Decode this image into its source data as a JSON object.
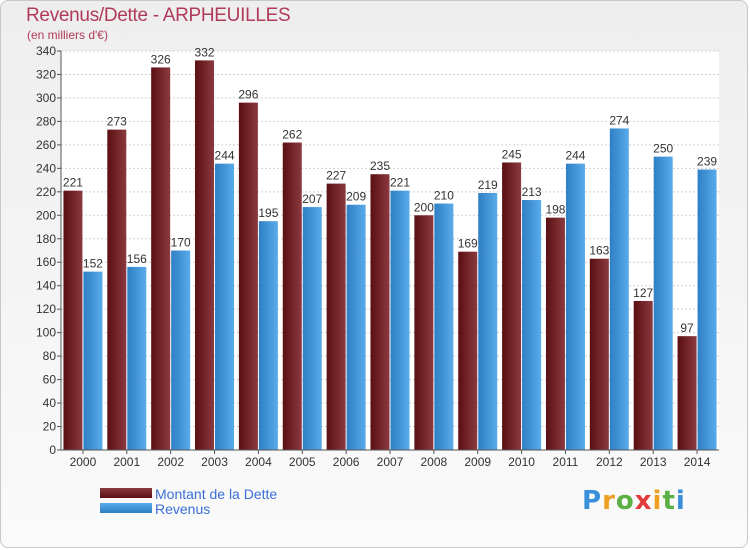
{
  "page": {
    "title": "Revenus/Dette - ARPHEUILLES",
    "subtitle": "(en milliers d'€)"
  },
  "legend": {
    "debt_label": "Montant de la Dette",
    "revenue_label": "Revenus"
  },
  "logo": {
    "text": "Proxiti"
  },
  "colors": {
    "debt_top": "#8b3a3f",
    "debt_bottom": "#5a0f12",
    "revenue_top": "#5aabea",
    "revenue_bottom": "#2e7fc4",
    "title": "#b03a5a",
    "legend_text": "#3b6fd8"
  },
  "chart_data": {
    "type": "bar",
    "title": "Revenus/Dette - ARPHEUILLES",
    "subtitle": "(en milliers d'€)",
    "categories": [
      "2000",
      "2001",
      "2002",
      "2003",
      "2004",
      "2005",
      "2006",
      "2007",
      "2008",
      "2009",
      "2010",
      "2011",
      "2012",
      "2013",
      "2014"
    ],
    "series": [
      {
        "name": "Montant de la Dette",
        "values": [
          221,
          273,
          326,
          332,
          296,
          262,
          227,
          235,
          200,
          169,
          245,
          198,
          163,
          127,
          97
        ]
      },
      {
        "name": "Revenus",
        "values": [
          152,
          156,
          170,
          244,
          195,
          207,
          209,
          221,
          210,
          219,
          213,
          244,
          274,
          250,
          239
        ]
      }
    ],
    "ylim": [
      0,
      340
    ],
    "ytick_step": 20,
    "grid": true,
    "legend_position": "bottom-left"
  }
}
